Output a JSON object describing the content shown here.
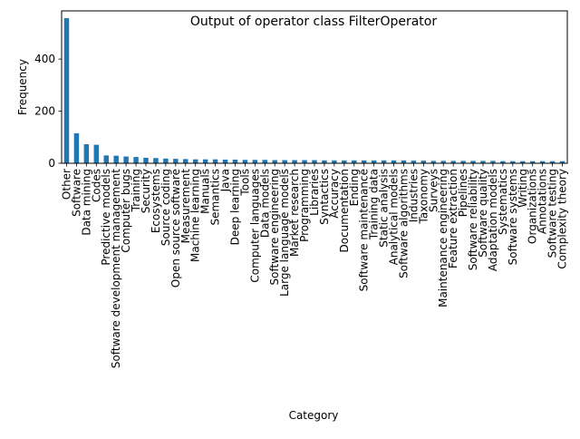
{
  "chart_data": {
    "type": "bar",
    "title": "Output of operator class FilterOperator",
    "xlabel": "Category",
    "ylabel": "Frequency",
    "ylim": [
      0,
      585
    ],
    "yticks": [
      0,
      200,
      400
    ],
    "grid": false,
    "legend": "none",
    "bar_color": "#1f77b4",
    "categories": [
      "Other",
      "Software",
      "Data mining",
      "Codes",
      "Predictive models",
      "Software development management",
      "Computer bugs",
      "Training",
      "Security",
      "Ecosystems",
      "Source coding",
      "Open source software",
      "Measurement",
      "Machine learning",
      "Manuals",
      "Semantics",
      "Java",
      "Deep learning",
      "Tools",
      "Computer languages",
      "Data models",
      "Software engineering",
      "Large language models",
      "Market research",
      "Programming",
      "Libraries",
      "Syntactics",
      "Accuracy",
      "Documentation",
      "Ending",
      "Software maintenance",
      "Training data",
      "Static analysis",
      "Analytical models",
      "Software algorithms",
      "Industries",
      "Taxonomy",
      "Surveys",
      "Maintenance engineering",
      "Feature extraction",
      "Pipelines",
      "Software reliability",
      "Software quality",
      "Adaptation models",
      "Systematics",
      "Software systems",
      "Writing",
      "Organizations",
      "Annotations",
      "Software testing",
      "Complexity theory"
    ],
    "values": [
      557,
      115,
      73,
      71,
      30,
      29,
      26,
      24,
      21,
      20,
      18,
      17,
      16,
      15,
      15,
      15,
      14,
      14,
      13,
      13,
      13,
      12,
      12,
      12,
      12,
      12,
      11,
      11,
      11,
      11,
      11,
      11,
      11,
      11,
      11,
      10,
      10,
      9,
      9,
      9,
      9,
      9,
      9,
      9,
      8,
      8,
      8,
      8,
      8,
      8,
      8
    ]
  }
}
